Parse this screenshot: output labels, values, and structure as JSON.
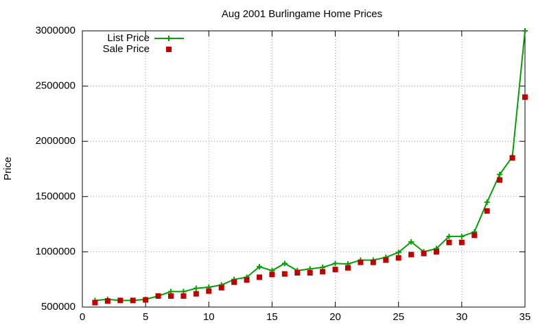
{
  "chart_data": {
    "type": "line",
    "title": "Aug 2001 Burlingame Home Prices",
    "y_label": "Price",
    "x": [
      1,
      2,
      3,
      4,
      5,
      6,
      7,
      8,
      9,
      10,
      11,
      12,
      13,
      14,
      15,
      16,
      17,
      18,
      19,
      20,
      21,
      22,
      23,
      24,
      25,
      26,
      27,
      28,
      29,
      30,
      31,
      32,
      33,
      34,
      35
    ],
    "series": [
      {
        "name": "List Price",
        "color": "#00a000",
        "mode": "linespoints",
        "values": [
          560000,
          570000,
          560000,
          560000,
          570000,
          600000,
          640000,
          640000,
          670000,
          680000,
          700000,
          750000,
          770000,
          865000,
          830000,
          895000,
          830000,
          845000,
          860000,
          895000,
          890000,
          925000,
          925000,
          950000,
          995000,
          1090000,
          1000000,
          1030000,
          1140000,
          1140000,
          1180000,
          1450000,
          1700000,
          1860000,
          3000000
        ]
      },
      {
        "name": "Sale Price",
        "color": "#c00000",
        "mode": "points",
        "values": [
          540000,
          555000,
          560000,
          560000,
          565000,
          600000,
          600000,
          600000,
          620000,
          645000,
          675000,
          725000,
          745000,
          770000,
          795000,
          800000,
          810000,
          810000,
          820000,
          840000,
          855000,
          905000,
          905000,
          925000,
          945000,
          975000,
          985000,
          1000000,
          1085000,
          1085000,
          1150000,
          1370000,
          1650000,
          1850000,
          2400000
        ]
      }
    ],
    "xlim": [
      0,
      35
    ],
    "xticks": [
      0,
      5,
      10,
      15,
      20,
      25,
      30,
      35
    ],
    "ylim": [
      500000,
      3000000
    ],
    "yticks": [
      500000,
      1000000,
      1500000,
      2000000,
      2500000,
      3000000
    ],
    "grid": true,
    "legend": "top-left"
  }
}
